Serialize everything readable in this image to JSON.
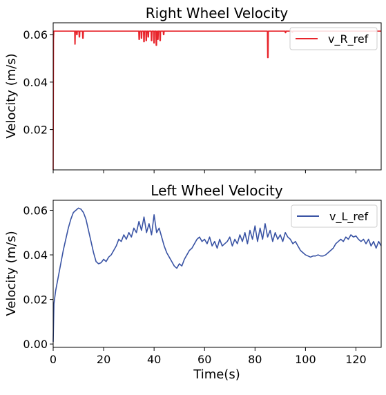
{
  "chart_data": [
    {
      "type": "line",
      "title": "Right Wheel Velocity",
      "xlabel": "",
      "ylabel": "Velocity (m/s)",
      "xlim": [
        0,
        130
      ],
      "ylim": [
        0.003,
        0.065
      ],
      "xticks": [
        0,
        20,
        40,
        60,
        80,
        100,
        120
      ],
      "xtick_labels_visible": false,
      "yticks": [
        0.02,
        0.04,
        0.06
      ],
      "ytick_labels": [
        "0.02",
        "0.04",
        "0.06"
      ],
      "grid": false,
      "legend": "top-right",
      "series": [
        {
          "name": "v_R_ref",
          "color": "#e8242b",
          "x": [
            0,
            0.15,
            0.3,
            0.5,
            8.5,
            8.6,
            8.7,
            8.8,
            9.2,
            9.3,
            9.5,
            9.6,
            10.2,
            10.3,
            10.5,
            10.6,
            11.6,
            11.7,
            11.9,
            12.0,
            33.9,
            34.0,
            34.2,
            34.3,
            34.8,
            34.9,
            35.1,
            35.2,
            35.8,
            35.9,
            36.1,
            36.2,
            36.7,
            36.8,
            37.0,
            37.1,
            37.5,
            37.6,
            37.8,
            37.9,
            38.8,
            38.9,
            39.1,
            39.2,
            39.8,
            39.9,
            40.1,
            40.2,
            40.7,
            40.8,
            41.0,
            41.1,
            41.3,
            41.4,
            41.6,
            41.7,
            42.2,
            42.3,
            42.5,
            42.6,
            43.6,
            43.7,
            43.9,
            44.0,
            84.9,
            85.0,
            85.2,
            85.3,
            91.9,
            92.0,
            92.2,
            92.3,
            94.6,
            94.7,
            94.9,
            95.0,
            130
          ],
          "values": [
            0.003,
            0.058,
            0.0615,
            0.0615,
            0.0615,
            0.056,
            0.056,
            0.0615,
            0.0615,
            0.06,
            0.06,
            0.0615,
            0.0615,
            0.059,
            0.059,
            0.0615,
            0.0615,
            0.0585,
            0.0585,
            0.0615,
            0.0615,
            0.058,
            0.058,
            0.0615,
            0.0615,
            0.0585,
            0.0585,
            0.0615,
            0.0615,
            0.057,
            0.057,
            0.0615,
            0.0615,
            0.0575,
            0.0575,
            0.0615,
            0.0615,
            0.059,
            0.059,
            0.0615,
            0.0615,
            0.0575,
            0.0575,
            0.0615,
            0.0615,
            0.0565,
            0.0565,
            0.0615,
            0.0615,
            0.0555,
            0.0555,
            0.0615,
            0.0615,
            0.058,
            0.058,
            0.0615,
            0.0615,
            0.0575,
            0.0575,
            0.0615,
            0.0615,
            0.06,
            0.06,
            0.0615,
            0.0615,
            0.0503,
            0.0503,
            0.0615,
            0.0615,
            0.0608,
            0.0608,
            0.0615,
            0.0615,
            0.061,
            0.061,
            0.0615,
            0.0615
          ]
        }
      ]
    },
    {
      "type": "line",
      "title": "Left Wheel Velocity",
      "xlabel": "Time(s)",
      "ylabel": "Velocity (m/s)",
      "xlim": [
        0,
        130
      ],
      "ylim": [
        -0.0015,
        0.0645
      ],
      "xticks": [
        0,
        20,
        40,
        60,
        80,
        100,
        120
      ],
      "xtick_labels": [
        "0",
        "20",
        "40",
        "60",
        "80",
        "100",
        "120"
      ],
      "yticks": [
        0.0,
        0.02,
        0.04,
        0.06
      ],
      "ytick_labels": [
        "0.00",
        "0.02",
        "0.04",
        "0.06"
      ],
      "grid": false,
      "legend": "top-right",
      "series": [
        {
          "name": "v_L_ref",
          "color": "#3953a4",
          "x": [
            0,
            0.3,
            1,
            2,
            3,
            4,
            5,
            6,
            7,
            8,
            9,
            10,
            11,
            12,
            13,
            14,
            15,
            16,
            17,
            18,
            19,
            20,
            21,
            22,
            23,
            24,
            25,
            26,
            27,
            28,
            29,
            30,
            31,
            32,
            33,
            34,
            35,
            36,
            37,
            38,
            39,
            40,
            41,
            42,
            43,
            44,
            45,
            46,
            47,
            48,
            49,
            50,
            51,
            52,
            53,
            54,
            55,
            56,
            57,
            58,
            59,
            60,
            61,
            62,
            63,
            64,
            65,
            66,
            67,
            68,
            69,
            70,
            71,
            72,
            73,
            74,
            75,
            76,
            77,
            78,
            79,
            80,
            81,
            82,
            83,
            84,
            85,
            86,
            87,
            88,
            89,
            90,
            91,
            92,
            93,
            94,
            95,
            96,
            97,
            98,
            99,
            100,
            101,
            102,
            103,
            104,
            105,
            106,
            107,
            108,
            109,
            110,
            111,
            112,
            113,
            114,
            115,
            116,
            117,
            118,
            119,
            120,
            121,
            122,
            123,
            124,
            125,
            126,
            127,
            128,
            129,
            130
          ],
          "values": [
            0.001,
            0.018,
            0.024,
            0.03,
            0.036,
            0.042,
            0.047,
            0.052,
            0.056,
            0.059,
            0.06,
            0.061,
            0.0605,
            0.059,
            0.056,
            0.051,
            0.046,
            0.041,
            0.037,
            0.036,
            0.0365,
            0.038,
            0.037,
            0.039,
            0.04,
            0.042,
            0.044,
            0.047,
            0.046,
            0.049,
            0.047,
            0.05,
            0.048,
            0.052,
            0.05,
            0.055,
            0.051,
            0.057,
            0.05,
            0.054,
            0.049,
            0.058,
            0.05,
            0.052,
            0.048,
            0.044,
            0.041,
            0.039,
            0.037,
            0.035,
            0.034,
            0.036,
            0.035,
            0.038,
            0.04,
            0.042,
            0.043,
            0.045,
            0.047,
            0.048,
            0.046,
            0.047,
            0.045,
            0.048,
            0.044,
            0.046,
            0.043,
            0.047,
            0.044,
            0.045,
            0.046,
            0.048,
            0.044,
            0.047,
            0.045,
            0.049,
            0.046,
            0.05,
            0.045,
            0.051,
            0.047,
            0.053,
            0.046,
            0.052,
            0.047,
            0.054,
            0.048,
            0.051,
            0.046,
            0.05,
            0.047,
            0.049,
            0.046,
            0.05,
            0.048,
            0.047,
            0.045,
            0.046,
            0.044,
            0.042,
            0.041,
            0.04,
            0.0395,
            0.039,
            0.0395,
            0.0395,
            0.04,
            0.0395,
            0.0395,
            0.04,
            0.041,
            0.042,
            0.043,
            0.045,
            0.046,
            0.047,
            0.046,
            0.048,
            0.047,
            0.049,
            0.048,
            0.0485,
            0.047,
            0.046,
            0.047,
            0.045,
            0.047,
            0.044,
            0.046,
            0.043,
            0.046,
            0.044
          ]
        }
      ]
    }
  ]
}
